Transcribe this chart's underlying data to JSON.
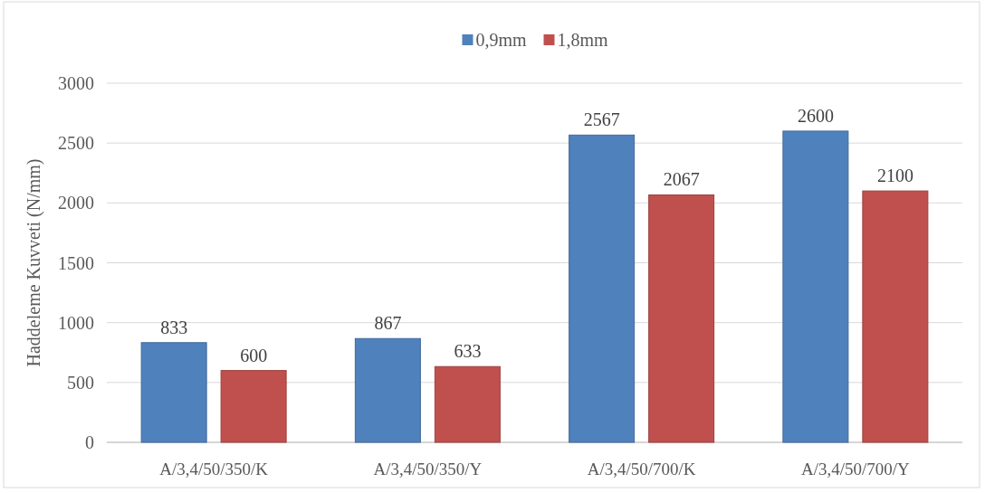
{
  "chart_data": {
    "type": "bar",
    "ylabel": "Haddeleme Kuvveti (N/mm)",
    "categories": [
      "A/3,4/50/350/K",
      "A/3,4/50/350/Y",
      "A/3,4/50/700/K",
      "A/3,4/50/700/Y"
    ],
    "series": [
      {
        "name": "0,9mm",
        "color": "#4f81bd",
        "values": [
          833,
          867,
          2567,
          2600
        ]
      },
      {
        "name": "1,8mm",
        "color": "#c0504d",
        "values": [
          600,
          633,
          2067,
          2100
        ]
      }
    ],
    "ylim": [
      0,
      3000
    ],
    "yticks": [
      0,
      500,
      1000,
      1500,
      2000,
      2500,
      3000
    ],
    "grid": "y",
    "legend": "top",
    "data_labels": true
  }
}
